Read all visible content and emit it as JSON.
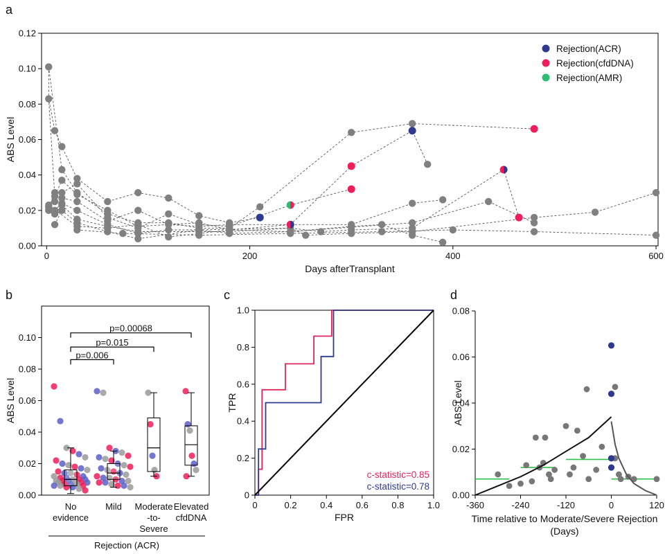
{
  "figure": {
    "panels": [
      "a",
      "b",
      "c",
      "d"
    ]
  },
  "chart_data": [
    {
      "panel": "a",
      "type": "scatter",
      "xlabel": "Days afterTransplant",
      "ylabel": "ABS Level",
      "xlim": [
        -5,
        602
      ],
      "ylim": [
        0,
        0.12
      ],
      "xticks": [
        0,
        200,
        400,
        600
      ],
      "yticks": [
        0.0,
        0.02,
        0.04,
        0.06,
        0.08,
        0.1,
        0.12
      ],
      "ytick_labels": [
        "0.00",
        "0.02",
        "0.04",
        "0.06",
        "0.08",
        "0.10",
        "0.12"
      ],
      "grid": false,
      "legend_position": "top-right",
      "legend": [
        {
          "name": "Rejection(ACR)",
          "color": "#2e3a8f"
        },
        {
          "name": "Rejection(cfdDNA)",
          "color": "#ee1d5c"
        },
        {
          "name": "Rejection(AMR)",
          "color": "#2dbd6e"
        }
      ],
      "colors": {
        "background_points": "#808080",
        "lines": "#555555"
      },
      "trajectories": [
        [
          [
            2,
            0.101
          ],
          [
            2,
            0.083
          ],
          [
            8,
            0.065
          ],
          [
            15,
            0.056
          ],
          [
            30,
            0.038
          ],
          [
            60,
            0.025
          ],
          [
            90,
            0.03
          ],
          [
            120,
            0.027
          ],
          [
            150,
            0.017
          ],
          [
            180,
            0.013
          ],
          [
            210,
            0.016
          ]
        ],
        [
          [
            2,
            0.101
          ],
          [
            15,
            0.043
          ],
          [
            30,
            0.03
          ],
          [
            60,
            0.018
          ],
          [
            90,
            0.013
          ],
          [
            120,
            0.013
          ],
          [
            150,
            0.01
          ],
          [
            180,
            0.01
          ],
          [
            210,
            0.022
          ],
          [
            300,
            0.064
          ],
          [
            360,
            0.069
          ],
          [
            480,
            0.066
          ]
        ],
        [
          [
            2,
            0.083
          ],
          [
            8,
            0.028
          ],
          [
            15,
            0.037
          ],
          [
            30,
            0.029
          ],
          [
            60,
            0.02
          ],
          [
            90,
            0.011
          ],
          [
            120,
            0.012
          ],
          [
            150,
            0.013
          ],
          [
            180,
            0.009
          ],
          [
            240,
            0.012
          ],
          [
            300,
            0.045
          ],
          [
            360,
            0.065
          ],
          [
            375,
            0.046
          ]
        ],
        [
          [
            2,
            0.022
          ],
          [
            8,
            0.03
          ],
          [
            15,
            0.03
          ],
          [
            30,
            0.035
          ],
          [
            60,
            0.016
          ],
          [
            90,
            0.01
          ],
          [
            120,
            0.018
          ],
          [
            150,
            0.012
          ],
          [
            180,
            0.011
          ],
          [
            240,
            0.023
          ],
          [
            300,
            0.032
          ]
        ],
        [
          [
            2,
            0.02
          ],
          [
            8,
            0.025
          ],
          [
            15,
            0.027
          ],
          [
            30,
            0.025
          ],
          [
            60,
            0.014
          ],
          [
            90,
            0.02
          ],
          [
            120,
            0.012
          ],
          [
            150,
            0.011
          ],
          [
            180,
            0.012
          ],
          [
            240,
            0.012
          ],
          [
            300,
            0.012
          ],
          [
            360,
            0.024
          ],
          [
            390,
            0.026
          ]
        ],
        [
          [
            2,
            0.023
          ],
          [
            8,
            0.02
          ],
          [
            15,
            0.024
          ],
          [
            30,
            0.02
          ],
          [
            60,
            0.012
          ],
          [
            90,
            0.007
          ],
          [
            120,
            0.009
          ],
          [
            150,
            0.009
          ],
          [
            180,
            0.007
          ],
          [
            240,
            0.008
          ],
          [
            300,
            0.011
          ],
          [
            330,
            0.012
          ],
          [
            360,
            0.006
          ],
          [
            390,
            0.002
          ]
        ],
        [
          [
            8,
            0.018
          ],
          [
            15,
            0.023
          ],
          [
            30,
            0.015
          ],
          [
            60,
            0.011
          ],
          [
            90,
            0.008
          ],
          [
            150,
            0.008
          ],
          [
            180,
            0.008
          ],
          [
            240,
            0.01
          ],
          [
            270,
            0.008
          ],
          [
            300,
            0.009
          ],
          [
            360,
            0.01
          ],
          [
            450,
            0.043
          ],
          [
            465,
            0.016
          ]
        ],
        [
          [
            8,
            0.012
          ],
          [
            15,
            0.02
          ],
          [
            30,
            0.013
          ],
          [
            60,
            0.008
          ],
          [
            90,
            0.004
          ],
          [
            150,
            0.009
          ],
          [
            240,
            0.01
          ],
          [
            255,
            0.006
          ],
          [
            300,
            0.007
          ],
          [
            360,
            0.008
          ],
          [
            480,
            0.016
          ],
          [
            540,
            0.019
          ],
          [
            600,
            0.03
          ]
        ],
        [
          [
            2,
            0.023
          ],
          [
            30,
            0.011
          ],
          [
            60,
            0.01
          ],
          [
            90,
            0.012
          ],
          [
            120,
            0.005
          ],
          [
            180,
            0.009
          ],
          [
            240,
            0.008
          ],
          [
            360,
            0.013
          ],
          [
            435,
            0.025
          ],
          [
            480,
            0.013
          ]
        ],
        [
          [
            30,
            0.009
          ],
          [
            75,
            0.007
          ],
          [
            150,
            0.006
          ],
          [
            240,
            0.007
          ],
          [
            330,
            0.008
          ],
          [
            400,
            0.009
          ],
          [
            480,
            0.008
          ],
          [
            600,
            0.006
          ]
        ]
      ],
      "rejection_points": [
        {
          "x": 210,
          "y": 0.016,
          "type": "ACR"
        },
        {
          "x": 240,
          "y": 0.012,
          "type": "ACR+cfdDNA"
        },
        {
          "x": 240,
          "y": 0.023,
          "type": "cfdDNA+AMR"
        },
        {
          "x": 300,
          "y": 0.045,
          "type": "cfdDNA"
        },
        {
          "x": 300,
          "y": 0.032,
          "type": "cfdDNA"
        },
        {
          "x": 360,
          "y": 0.065,
          "type": "ACR"
        },
        {
          "x": 450,
          "y": 0.043,
          "type": "ACR+cfdDNA"
        },
        {
          "x": 465,
          "y": 0.016,
          "type": "cfdDNA"
        },
        {
          "x": 480,
          "y": 0.066,
          "type": "cfdDNA"
        }
      ]
    },
    {
      "panel": "b",
      "type": "box",
      "ylabel": "ABS Level",
      "ylim": [
        0,
        0.12
      ],
      "yticks": [
        0.0,
        0.02,
        0.04,
        0.06,
        0.08,
        0.1
      ],
      "ytick_labels": [
        "0.00",
        "0.02",
        "0.04",
        "0.06",
        "0.08",
        "0.10"
      ],
      "categories": [
        [
          "No",
          "evidence"
        ],
        [
          "Mild"
        ],
        [
          "Moderate",
          "-to-",
          "Severe"
        ],
        [
          "Elevated",
          "cfdDNA"
        ]
      ],
      "group_label": "Rejection (ACR)",
      "comparisons": [
        {
          "label": "p=0.006",
          "from": 0,
          "to": 1,
          "y": 0.086
        },
        {
          "label": "p=0.015",
          "from": 0,
          "to": 2,
          "y": 0.094
        },
        {
          "label": "p=0.00068",
          "from": 0,
          "to": 3,
          "y": 0.103
        }
      ],
      "boxes": [
        {
          "q1": 0.006,
          "median": 0.01,
          "q3": 0.016,
          "whisker_low": 0.001,
          "whisker_high": 0.03
        },
        {
          "q1": 0.01,
          "median": 0.014,
          "q3": 0.02,
          "whisker_low": 0.005,
          "whisker_high": 0.028
        },
        {
          "q1": 0.015,
          "median": 0.03,
          "q3": 0.049,
          "whisker_low": 0.012,
          "whisker_high": 0.065
        },
        {
          "q1": 0.019,
          "median": 0.032,
          "q3": 0.044,
          "whisker_low": 0.012,
          "whisker_high": 0.065
        }
      ],
      "points": [
        [
          0.069,
          0.047,
          0.03,
          0.028,
          0.026,
          0.024,
          0.022,
          0.02,
          0.019,
          0.018,
          0.017,
          0.016,
          0.015,
          0.014,
          0.014,
          0.013,
          0.012,
          0.012,
          0.011,
          0.011,
          0.01,
          0.01,
          0.01,
          0.009,
          0.009,
          0.009,
          0.008,
          0.008,
          0.008,
          0.008,
          0.007,
          0.007,
          0.007,
          0.006,
          0.006,
          0.006,
          0.005,
          0.005,
          0.004,
          0.003
        ],
        [
          0.066,
          0.065,
          0.03,
          0.028,
          0.027,
          0.025,
          0.024,
          0.023,
          0.022,
          0.02,
          0.019,
          0.018,
          0.017,
          0.016,
          0.015,
          0.014,
          0.013,
          0.012,
          0.011,
          0.011,
          0.01,
          0.009,
          0.009,
          0.008,
          0.008,
          0.007,
          0.006,
          0.006,
          0.005
        ],
        [
          0.065,
          0.045,
          0.025,
          0.016,
          0.012
        ],
        [
          0.066,
          0.045,
          0.041,
          0.025,
          0.02,
          0.016,
          0.012
        ]
      ],
      "point_colors": [
        "#ee1d5c",
        "#5a5fc8",
        "#9a9a9a"
      ]
    },
    {
      "panel": "c",
      "type": "line",
      "xlabel": "FPR",
      "ylabel": "TPR",
      "xlim": [
        0,
        1
      ],
      "ylim": [
        0,
        1
      ],
      "xticks": [
        0,
        0.2,
        0.4,
        0.6,
        0.8,
        1.0
      ],
      "xtick_labels": [
        "0",
        "0.2",
        "0.4",
        "0.6",
        "0.8",
        "1.0"
      ],
      "yticks": [
        0,
        0.2,
        0.4,
        0.6,
        0.8,
        1.0
      ],
      "ytick_labels": [
        "0",
        "0.2",
        "0.4",
        "0.6",
        "0.8",
        "1.0"
      ],
      "series": [
        {
          "name": "c-statistic=0.85",
          "color": "#e0265c",
          "x": [
            0,
            0.02,
            0.02,
            0.04,
            0.04,
            0.09,
            0.09,
            0.17,
            0.17,
            0.33,
            0.33,
            0.41,
            0.41,
            0.43,
            0.43,
            1.0
          ],
          "y": [
            0,
            0,
            0.14,
            0.14,
            0.57,
            0.57,
            0.57,
            0.57,
            0.71,
            0.71,
            0.86,
            0.86,
            0.86,
            0.86,
            1.0,
            1.0
          ]
        },
        {
          "name": "c-statistic=0.78",
          "color": "#2f3b8f",
          "x": [
            0,
            0.02,
            0.02,
            0.04,
            0.04,
            0.06,
            0.06,
            0.37,
            0.37,
            0.44,
            0.44,
            1.0
          ],
          "y": [
            0,
            0,
            0.25,
            0.25,
            0.25,
            0.25,
            0.5,
            0.5,
            0.75,
            0.75,
            1.0,
            1.0
          ]
        },
        {
          "name": "",
          "color": "#000000",
          "x": [
            0,
            1
          ],
          "y": [
            0,
            1
          ]
        }
      ]
    },
    {
      "panel": "d",
      "type": "scatter",
      "xlabel": "Time relative to Moderate/Severe Rejection",
      "xlabel2": "(Days)",
      "ylabel": "ABS Level",
      "xlim": [
        -360,
        120
      ],
      "ylim": [
        0,
        0.08
      ],
      "xticks": [
        -360,
        -240,
        -120,
        0,
        120
      ],
      "yticks": [
        0.0,
        0.02,
        0.04,
        0.06,
        0.08
      ],
      "ytick_labels": [
        "0.00",
        "0.02",
        "0.04",
        "0.06",
        "0.08"
      ],
      "points_gray": [
        [
          -300,
          0.009
        ],
        [
          -270,
          0.004
        ],
        [
          -240,
          0.005
        ],
        [
          -225,
          0.013
        ],
        [
          -210,
          0.006
        ],
        [
          -200,
          0.025
        ],
        [
          -190,
          0.012
        ],
        [
          -180,
          0.014
        ],
        [
          -175,
          0.025
        ],
        [
          -165,
          0.009
        ],
        [
          -160,
          0.007
        ],
        [
          -150,
          0.011
        ],
        [
          -120,
          0.03
        ],
        [
          -110,
          0.009
        ],
        [
          -100,
          0.012
        ],
        [
          -90,
          0.028
        ],
        [
          -75,
          0.017
        ],
        [
          -65,
          0.046
        ],
        [
          -60,
          0.007
        ],
        [
          -40,
          0.011
        ],
        [
          -25,
          0.021
        ],
        [
          10,
          0.047
        ],
        [
          10,
          0.016
        ],
        [
          20,
          0.009
        ],
        [
          25,
          0.007
        ],
        [
          45,
          0.008
        ],
        [
          60,
          0.007
        ],
        [
          120,
          0.007
        ]
      ],
      "points_blue": [
        [
          0,
          0.065
        ],
        [
          0,
          0.044
        ],
        [
          0,
          0.016
        ],
        [
          0,
          0.012
        ]
      ],
      "fit_curve_left": [
        [
          -360,
          0.0
        ],
        [
          -300,
          0.004
        ],
        [
          -240,
          0.008
        ],
        [
          -180,
          0.013
        ],
        [
          -120,
          0.019
        ],
        [
          -60,
          0.025
        ],
        [
          0,
          0.034
        ]
      ],
      "fit_curve_right": [
        [
          0,
          0.032
        ],
        [
          10,
          0.022
        ],
        [
          20,
          0.016
        ],
        [
          40,
          0.009
        ],
        [
          60,
          0.005
        ],
        [
          90,
          0.002
        ],
        [
          120,
          0.0
        ]
      ],
      "green_segments": [
        [
          -360,
          -270,
          0.007
        ],
        [
          -240,
          -150,
          0.012
        ],
        [
          -120,
          0,
          0.0155
        ],
        [
          0,
          120,
          0.007
        ]
      ],
      "colors": {
        "gray": "#777777",
        "blue": "#2e3a8f",
        "green": "#2fbf4a",
        "fit": "#111111",
        "fit_right": "#555555"
      }
    }
  ]
}
